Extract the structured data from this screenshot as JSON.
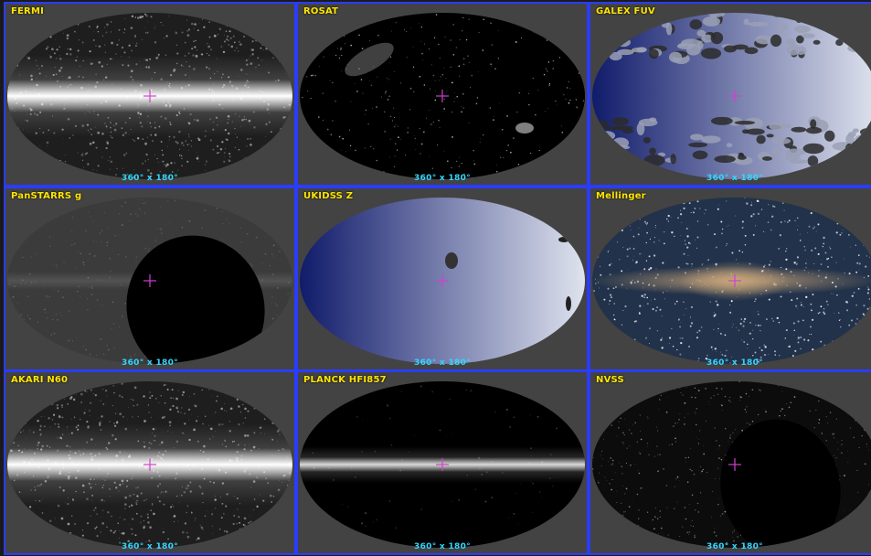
{
  "fov_label": "360° x 180°",
  "colors": {
    "border": "#2a3cff",
    "label": "#ffe600",
    "fov": "#33d6ff",
    "reticle": "#d040d0",
    "background": "#434343"
  },
  "panels": [
    {
      "label": "FERMI",
      "style": "band-bright"
    },
    {
      "label": "ROSAT",
      "style": "sparse-dark"
    },
    {
      "label": "GALEX FUV",
      "style": "blue-gradient-patchy"
    },
    {
      "label": "PanSTARRS g",
      "style": "gray-with-hole"
    },
    {
      "label": "UKIDSS Z",
      "style": "blue-gradient"
    },
    {
      "label": "Mellinger",
      "style": "milky-way-color"
    },
    {
      "label": "AKARI N60",
      "style": "band-bright"
    },
    {
      "label": "PLANCK HFI857",
      "style": "band-dark"
    },
    {
      "label": "NVSS",
      "style": "sparse-with-hole"
    }
  ]
}
